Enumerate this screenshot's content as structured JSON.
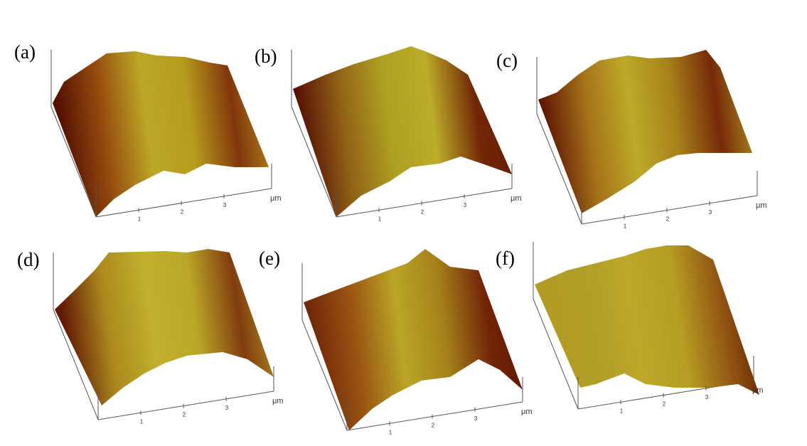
{
  "figure": {
    "panels": [
      {
        "label": "(a)",
        "unit": "μm",
        "ticks": [
          "1",
          "2",
          "3"
        ],
        "colors": [
          "#5a1203",
          "#a0520f",
          "#c9b22a",
          "#c3a51f",
          "#8a3a0c",
          "#c09a22"
        ]
      },
      {
        "label": "(b)",
        "unit": "μm",
        "ticks": [
          "1",
          "2",
          "3"
        ],
        "colors": [
          "#5e1405",
          "#9c6a18",
          "#b9ab25",
          "#c8b82b",
          "#7a2a08",
          "#6a1c05"
        ]
      },
      {
        "label": "(c)",
        "unit": "μm",
        "ticks": [
          "1",
          "2",
          "3"
        ],
        "colors": [
          "#6a1a05",
          "#b07a1a",
          "#c9b52c",
          "#b28a1c",
          "#7e2c08",
          "#c1a524"
        ]
      },
      {
        "label": "(d)",
        "unit": "μm",
        "ticks": [
          "1",
          "2",
          "3"
        ],
        "colors": [
          "#6a1a05",
          "#b6921f",
          "#cdbb30",
          "#c7b22a",
          "#8a4010",
          "#c4a726"
        ]
      },
      {
        "label": "(e)",
        "unit": "μm",
        "ticks": [
          "1",
          "2",
          "3"
        ],
        "colors": [
          "#7a2a08",
          "#a45c14",
          "#c7b02a",
          "#b08a1c",
          "#7a2808",
          "#5e1404"
        ]
      },
      {
        "label": "(f)",
        "unit": "μm",
        "ticks": [
          "1",
          "2",
          "3"
        ],
        "colors": [
          "#c0a424",
          "#bca82a",
          "#c9b32c",
          "#c2a726",
          "#9a5812",
          "#5a1203"
        ]
      }
    ]
  }
}
